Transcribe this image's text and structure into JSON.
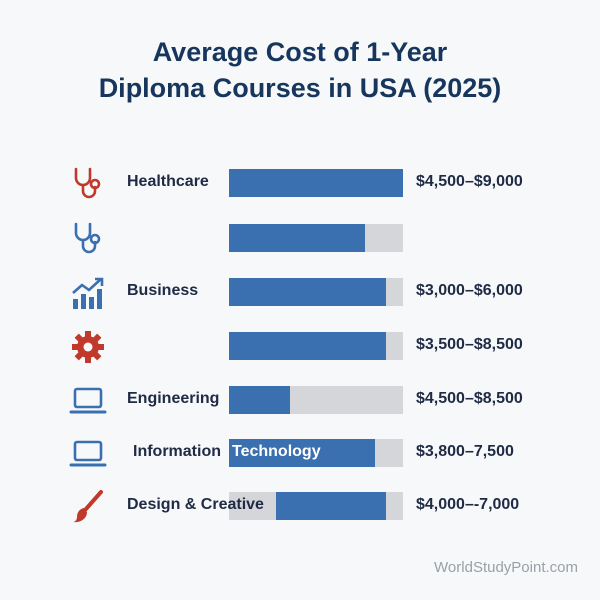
{
  "title_line1": "Average Cost of 1-Year",
  "title_line2": "Diploma Courses in USA (2025)",
  "watermark": "WorldStudyPoint.com",
  "chart_data": {
    "type": "bar",
    "orientation": "horizontal",
    "rows": [
      {
        "label": "Healthcare",
        "value_text": "$4,500–$9,000",
        "icon": "stethoscope-icon",
        "icon_color": "#c0392b",
        "bar": [
          0,
          1.0
        ]
      },
      {
        "label": "",
        "value_text": "",
        "icon": "stethoscope-icon",
        "icon_color": "#3a6fb0",
        "bar": [
          0,
          0.78
        ]
      },
      {
        "label": "Business",
        "value_text": "$3,000–$6,000",
        "icon": "growth-chart-icon",
        "icon_color": "#3a6fb0",
        "bar": [
          0,
          0.9
        ]
      },
      {
        "label": "",
        "value_text": "$3,500–$8,500",
        "icon": "gear-icon",
        "icon_color": "#c0392b",
        "bar": [
          0,
          0.9
        ]
      },
      {
        "label": "Engineering",
        "value_text": "$4,500–$8,500",
        "icon": "laptop-icon",
        "icon_color": "#3a6fb0",
        "bar": [
          0,
          0.35
        ]
      },
      {
        "label": "Information",
        "label_in_bar": "Technology",
        "value_text": "$3,800–7,500",
        "icon": "laptop-icon",
        "icon_color": "#3a6fb0",
        "bar": [
          0,
          0.84
        ]
      },
      {
        "label": "Design & Creative",
        "value_text": "$4,000–-7,000",
        "icon": "paintbrush-icon",
        "icon_color": "#c0392b",
        "bar": [
          0.27,
          0.9
        ]
      }
    ],
    "colors": {
      "bar": "#3a6fb0",
      "track": "#d4d6d9",
      "title": "#17365d"
    }
  }
}
